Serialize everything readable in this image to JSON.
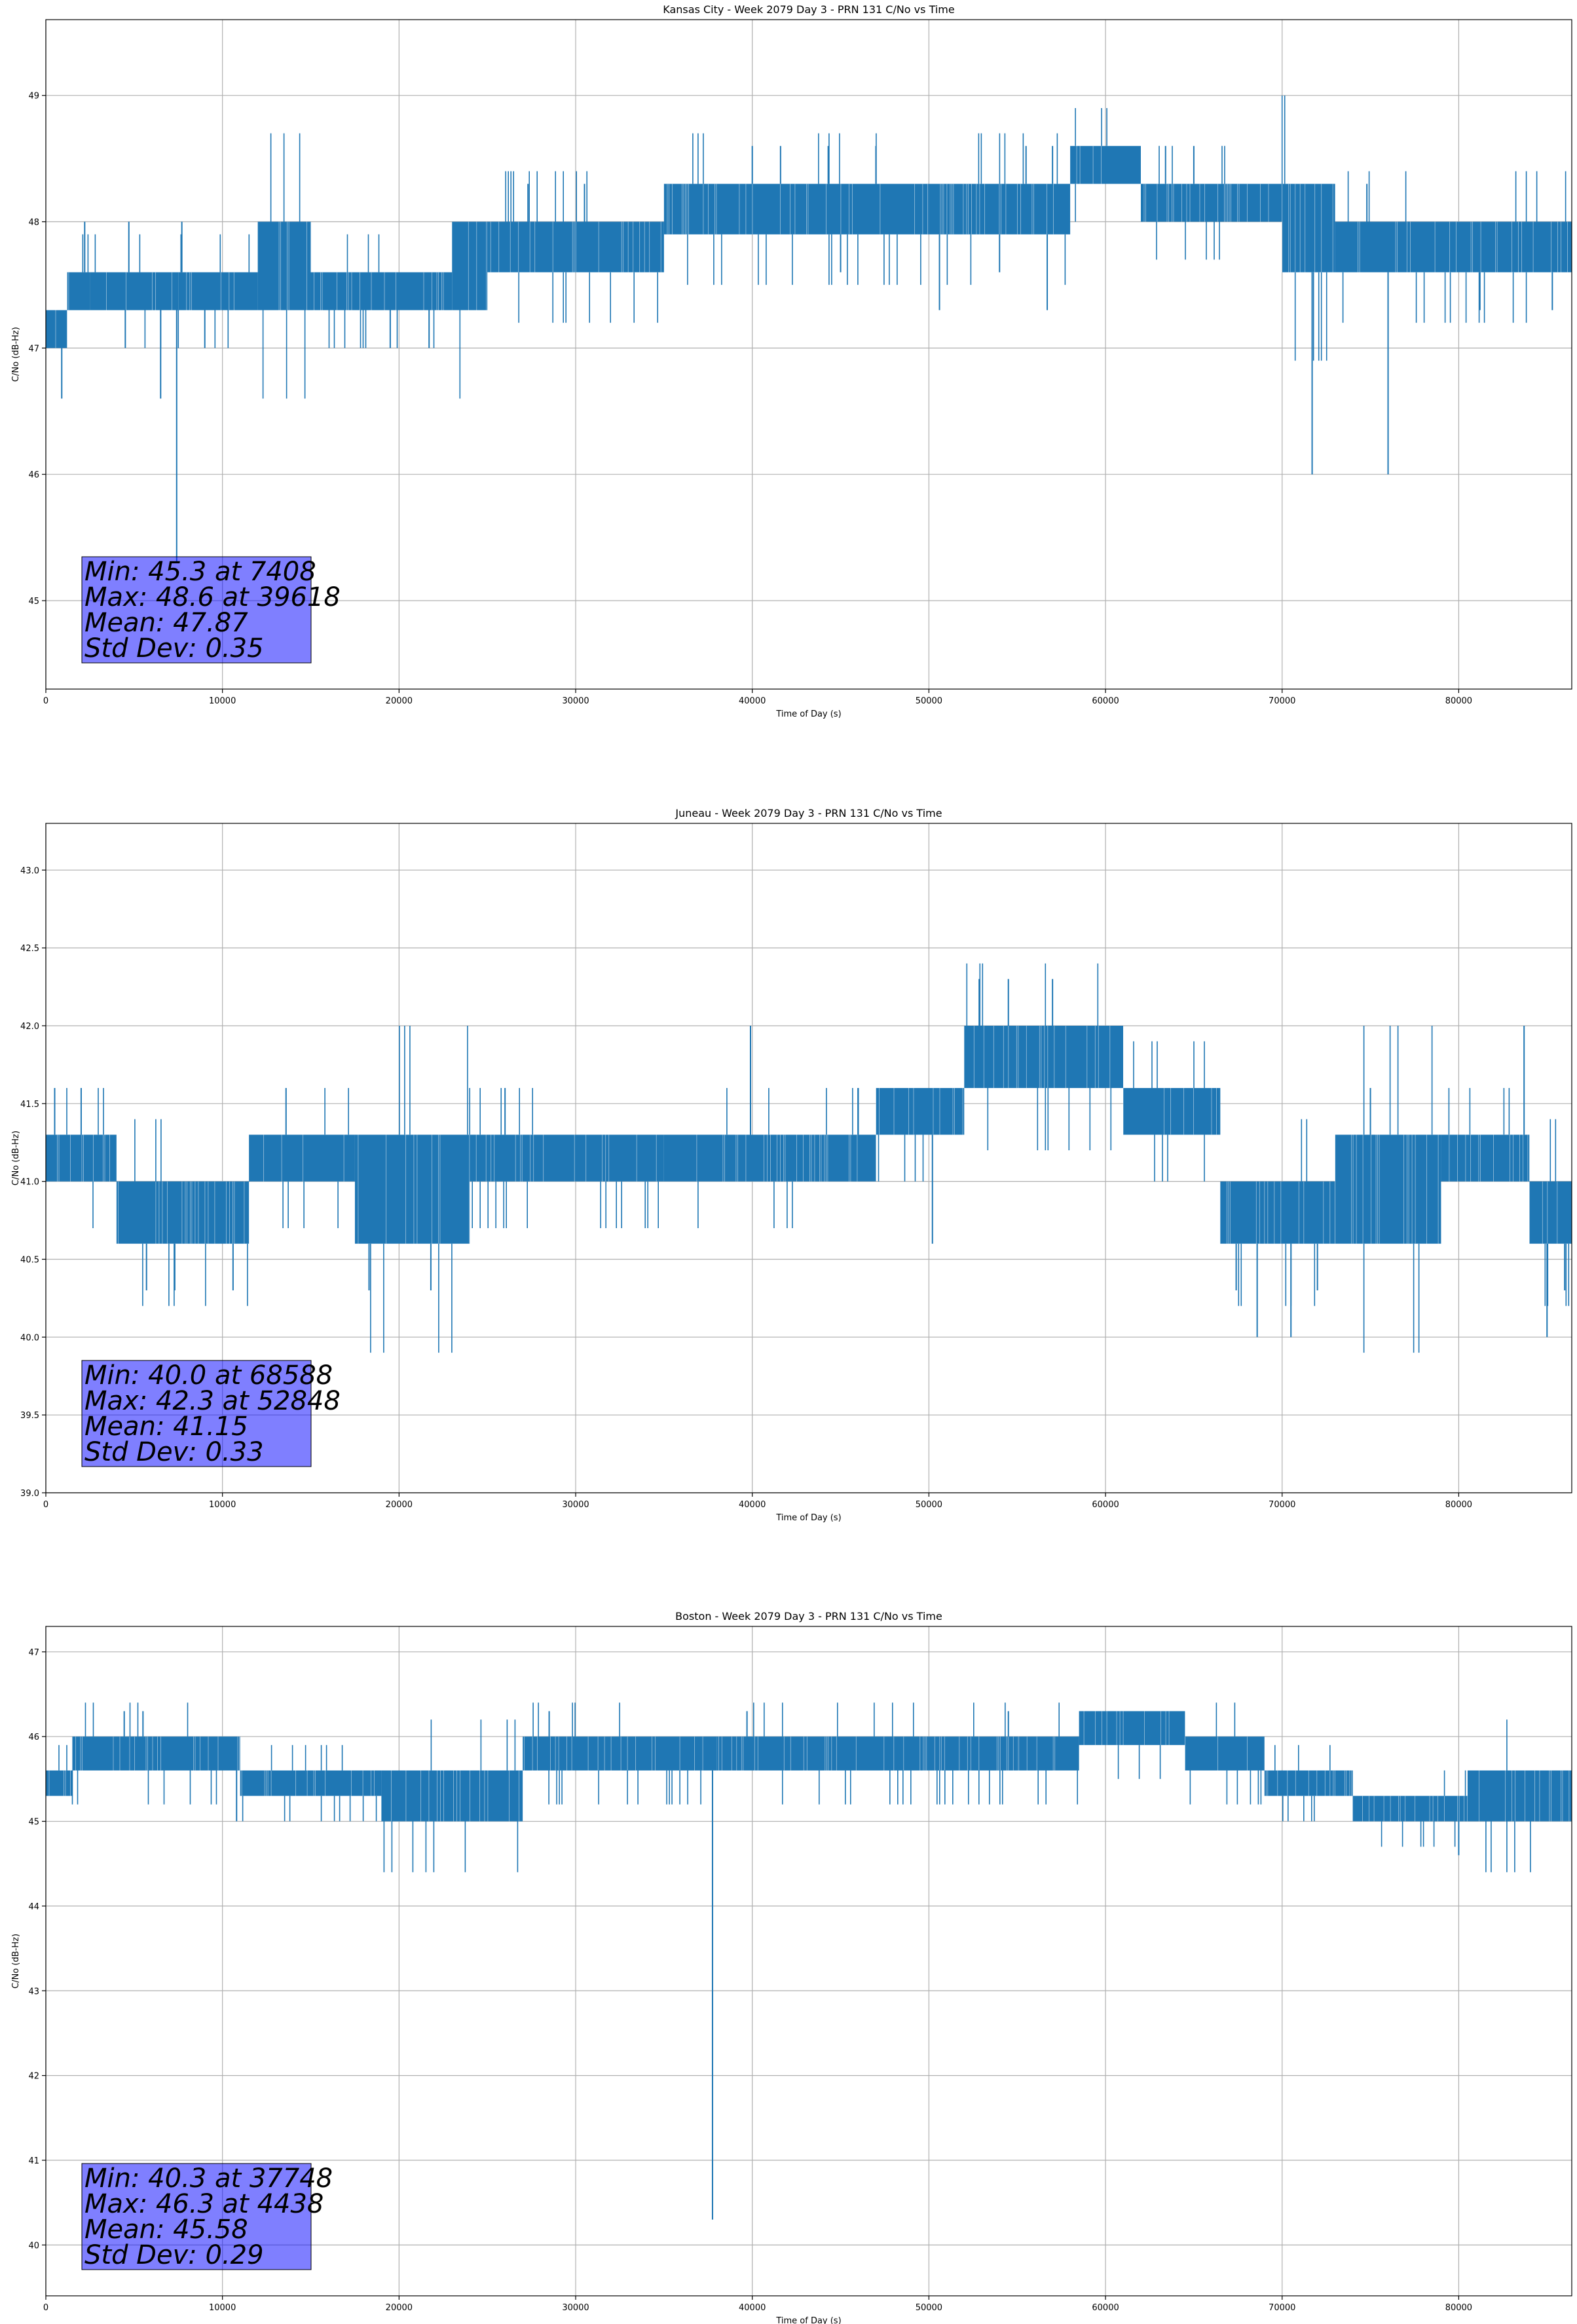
{
  "chart_data": [
    {
      "type": "line",
      "title": "Kansas City - Week 2079 Day 3 - PRN 131 C/No vs Time",
      "xlabel": "Time of Day (s)",
      "ylabel": "C/No (dB-Hz)",
      "xlim": [
        0,
        86400
      ],
      "ylim": [
        44.3,
        49.6
      ],
      "xticks": [
        0,
        10000,
        20000,
        30000,
        40000,
        50000,
        60000,
        70000,
        80000
      ],
      "yticks": [
        45,
        46,
        47,
        48,
        49
      ],
      "grid": true,
      "color": "#1f77b4",
      "segments": [
        {
          "x": [
            0,
            1200
          ],
          "low": 47.0,
          "high": 47.3
        },
        {
          "x": [
            1200,
            2500
          ],
          "low": 47.3,
          "high": 47.6
        },
        {
          "x": [
            2500,
            7500
          ],
          "low": 47.3,
          "high": 47.6
        },
        {
          "x": [
            7500,
            12000
          ],
          "low": 47.3,
          "high": 47.6
        },
        {
          "x": [
            12000,
            15000
          ],
          "low": 47.3,
          "high": 48.0
        },
        {
          "x": [
            15000,
            23000
          ],
          "low": 47.3,
          "high": 47.6
        },
        {
          "x": [
            23000,
            25000
          ],
          "low": 47.3,
          "high": 48.0
        },
        {
          "x": [
            25000,
            35000
          ],
          "low": 47.6,
          "high": 48.0
        },
        {
          "x": [
            35000,
            50000
          ],
          "low": 47.9,
          "high": 48.3
        },
        {
          "x": [
            50000,
            58000
          ],
          "low": 47.9,
          "high": 48.3
        },
        {
          "x": [
            58000,
            62000
          ],
          "low": 48.3,
          "high": 48.6
        },
        {
          "x": [
            62000,
            70000
          ],
          "low": 48.0,
          "high": 48.3
        },
        {
          "x": [
            70000,
            73000
          ],
          "low": 47.6,
          "high": 48.3
        },
        {
          "x": [
            73000,
            86400
          ],
          "low": 47.6,
          "high": 48.0
        }
      ],
      "spikes": [
        {
          "x": 900,
          "y": 46.6
        },
        {
          "x": 4500,
          "y": 47.0
        },
        {
          "x": 6500,
          "y": 46.6
        },
        {
          "x": 7408,
          "y": 45.3
        },
        {
          "x": 9000,
          "y": 47.0
        },
        {
          "x": 19500,
          "y": 47.0
        },
        {
          "x": 21700,
          "y": 47.0
        },
        {
          "x": 45000,
          "y": 47.6
        },
        {
          "x": 50600,
          "y": 47.3
        },
        {
          "x": 54000,
          "y": 47.6
        },
        {
          "x": 56700,
          "y": 47.3
        },
        {
          "x": 71700,
          "y": 46.0
        },
        {
          "x": 76000,
          "y": 46.0
        },
        {
          "x": 81200,
          "y": 47.3
        },
        {
          "x": 85300,
          "y": 47.3
        }
      ],
      "peaks": [
        {
          "x": 2200,
          "y": 48.0
        },
        {
          "x": 4700,
          "y": 48.0
        },
        {
          "x": 7700,
          "y": 48.0
        },
        {
          "x": 27300,
          "y": 48.3
        },
        {
          "x": 30500,
          "y": 48.3
        },
        {
          "x": 40000,
          "y": 48.6
        },
        {
          "x": 41600,
          "y": 48.6
        },
        {
          "x": 44300,
          "y": 48.6
        },
        {
          "x": 47000,
          "y": 48.6
        },
        {
          "x": 55500,
          "y": 48.6
        },
        {
          "x": 57000,
          "y": 48.6
        },
        {
          "x": 63400,
          "y": 48.6
        },
        {
          "x": 65000,
          "y": 48.6
        },
        {
          "x": 72800,
          "y": 48.3
        },
        {
          "x": 74800,
          "y": 48.3
        }
      ],
      "stats": {
        "min": "Min: 45.3 at 7408",
        "max": "Max: 48.6 at 39618",
        "mean": "Mean: 47.87",
        "std": "Std Dev: 0.35"
      }
    },
    {
      "type": "line",
      "title": "Juneau - Week 2079 Day 3 - PRN 131 C/No vs Time",
      "xlabel": "Time of Day (s)",
      "ylabel": "C/No (dB-Hz)",
      "xlim": [
        0,
        86400
      ],
      "ylim": [
        39.0,
        43.3
      ],
      "xticks": [
        0,
        10000,
        20000,
        30000,
        40000,
        50000,
        60000,
        70000,
        80000
      ],
      "yticks": [
        39.0,
        39.5,
        40.0,
        40.5,
        41.0,
        41.5,
        42.0,
        42.5,
        43.0
      ],
      "grid": true,
      "color": "#1f77b4",
      "segments": [
        {
          "x": [
            0,
            4000
          ],
          "low": 41.0,
          "high": 41.3
        },
        {
          "x": [
            4000,
            11500
          ],
          "low": 40.6,
          "high": 41.0
        },
        {
          "x": [
            11500,
            17500
          ],
          "low": 41.0,
          "high": 41.3
        },
        {
          "x": [
            17500,
            24000
          ],
          "low": 40.6,
          "high": 41.3
        },
        {
          "x": [
            24000,
            35000
          ],
          "low": 41.0,
          "high": 41.3
        },
        {
          "x": [
            35000,
            47000
          ],
          "low": 41.0,
          "high": 41.3
        },
        {
          "x": [
            47000,
            52000
          ],
          "low": 41.3,
          "high": 41.6
        },
        {
          "x": [
            52000,
            61000
          ],
          "low": 41.6,
          "high": 42.0
        },
        {
          "x": [
            61000,
            66500
          ],
          "low": 41.3,
          "high": 41.6
        },
        {
          "x": [
            66500,
            73000
          ],
          "low": 40.6,
          "high": 41.0
        },
        {
          "x": [
            73000,
            79000
          ],
          "low": 40.6,
          "high": 41.3
        },
        {
          "x": [
            79000,
            84000
          ],
          "low": 41.0,
          "high": 41.3
        },
        {
          "x": [
            84000,
            86400
          ],
          "low": 40.6,
          "high": 41.0
        }
      ],
      "spikes": [
        {
          "x": 5700,
          "y": 40.3
        },
        {
          "x": 7300,
          "y": 40.3
        },
        {
          "x": 10600,
          "y": 40.3
        },
        {
          "x": 18300,
          "y": 40.3
        },
        {
          "x": 21800,
          "y": 40.3
        },
        {
          "x": 50200,
          "y": 40.6
        },
        {
          "x": 67400,
          "y": 40.3
        },
        {
          "x": 68588,
          "y": 40.0
        },
        {
          "x": 70500,
          "y": 40.0
        },
        {
          "x": 72000,
          "y": 40.3
        },
        {
          "x": 85000,
          "y": 40.0
        },
        {
          "x": 86000,
          "y": 40.3
        }
      ],
      "peaks": [
        {
          "x": 500,
          "y": 41.6
        },
        {
          "x": 2000,
          "y": 41.6
        },
        {
          "x": 13600,
          "y": 41.6
        },
        {
          "x": 26000,
          "y": 41.6
        },
        {
          "x": 39900,
          "y": 42.0
        },
        {
          "x": 46000,
          "y": 41.6
        },
        {
          "x": 52848,
          "y": 42.3
        },
        {
          "x": 54500,
          "y": 42.3
        },
        {
          "x": 57000,
          "y": 42.3
        },
        {
          "x": 63000,
          "y": 41.6
        },
        {
          "x": 75000,
          "y": 41.6
        },
        {
          "x": 83700,
          "y": 42.0
        }
      ],
      "stats": {
        "min": "Min: 40.0 at 68588",
        "max": "Max: 42.3 at 52848",
        "mean": "Mean: 41.15",
        "std": "Std Dev: 0.33"
      }
    },
    {
      "type": "line",
      "title": "Boston - Week 2079 Day 3 - PRN 131 C/No vs Time",
      "xlabel": "Time of Day (s)",
      "ylabel": "C/No (dB-Hz)",
      "xlim": [
        0,
        86400
      ],
      "ylim": [
        39.4,
        47.3
      ],
      "xticks": [
        0,
        10000,
        20000,
        30000,
        40000,
        50000,
        60000,
        70000,
        80000
      ],
      "yticks": [
        40,
        41,
        42,
        43,
        44,
        45,
        46,
        47
      ],
      "grid": true,
      "color": "#1f77b4",
      "segments": [
        {
          "x": [
            0,
            1500
          ],
          "low": 45.3,
          "high": 45.6
        },
        {
          "x": [
            1500,
            11000
          ],
          "low": 45.6,
          "high": 46.0
        },
        {
          "x": [
            11000,
            19000
          ],
          "low": 45.3,
          "high": 45.6
        },
        {
          "x": [
            19000,
            27000
          ],
          "low": 45.0,
          "high": 45.6
        },
        {
          "x": [
            27000,
            38000
          ],
          "low": 45.6,
          "high": 46.0
        },
        {
          "x": [
            38000,
            55000
          ],
          "low": 45.6,
          "high": 46.0
        },
        {
          "x": [
            55000,
            58500
          ],
          "low": 45.6,
          "high": 46.0
        },
        {
          "x": [
            58500,
            64500
          ],
          "low": 45.9,
          "high": 46.3
        },
        {
          "x": [
            64500,
            69000
          ],
          "low": 45.6,
          "high": 46.0
        },
        {
          "x": [
            69000,
            74000
          ],
          "low": 45.3,
          "high": 45.6
        },
        {
          "x": [
            74000,
            80500
          ],
          "low": 45.0,
          "high": 45.3
        },
        {
          "x": [
            80500,
            86400
          ],
          "low": 45.0,
          "high": 45.6
        }
      ],
      "spikes": [
        {
          "x": 37748,
          "y": 40.3
        },
        {
          "x": 10800,
          "y": 45.0
        },
        {
          "x": 20400,
          "y": 45.0
        },
        {
          "x": 80000,
          "y": 44.6
        },
        {
          "x": 86000,
          "y": 45.0
        }
      ],
      "peaks": [
        {
          "x": 4438,
          "y": 46.3
        },
        {
          "x": 5500,
          "y": 46.3
        },
        {
          "x": 28500,
          "y": 46.3
        },
        {
          "x": 39700,
          "y": 46.3
        },
        {
          "x": 54500,
          "y": 46.3
        }
      ],
      "stats": {
        "min": "Min: 40.3 at 37748",
        "max": "Max: 46.3 at 4438",
        "mean": "Mean: 45.58",
        "std": "Std Dev: 0.29"
      }
    }
  ]
}
